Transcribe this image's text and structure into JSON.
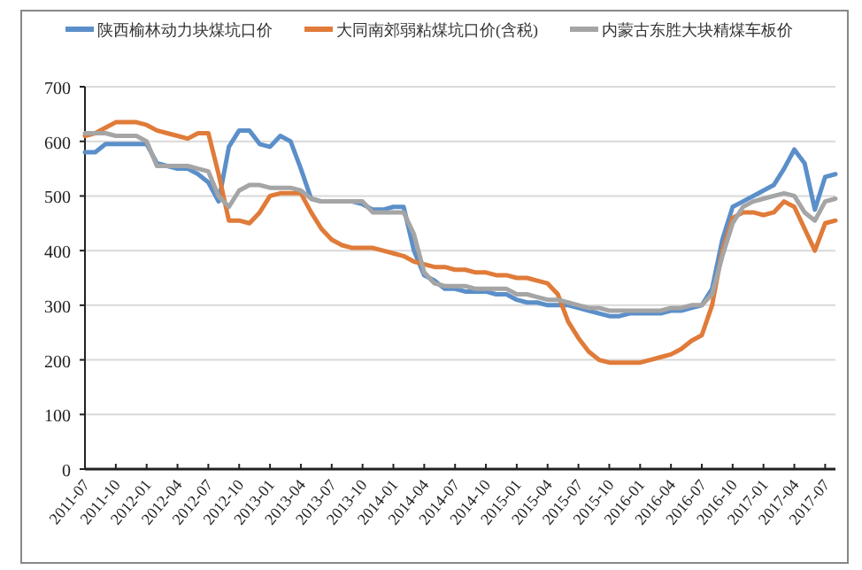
{
  "chart_data": {
    "type": "line",
    "x": [
      "2011-07",
      "2011-08",
      "2011-09",
      "2011-10",
      "2011-11",
      "2011-12",
      "2012-01",
      "2012-02",
      "2012-03",
      "2012-04",
      "2012-05",
      "2012-06",
      "2012-07",
      "2012-08",
      "2012-09",
      "2012-10",
      "2012-11",
      "2012-12",
      "2013-01",
      "2013-02",
      "2013-03",
      "2013-04",
      "2013-05",
      "2013-06",
      "2013-07",
      "2013-08",
      "2013-09",
      "2013-10",
      "2013-11",
      "2013-12",
      "2014-01",
      "2014-02",
      "2014-03",
      "2014-04",
      "2014-05",
      "2014-06",
      "2014-07",
      "2014-08",
      "2014-09",
      "2014-10",
      "2014-11",
      "2014-12",
      "2015-01",
      "2015-02",
      "2015-03",
      "2015-04",
      "2015-05",
      "2015-06",
      "2015-07",
      "2015-08",
      "2015-09",
      "2015-10",
      "2015-11",
      "2015-12",
      "2016-01",
      "2016-02",
      "2016-03",
      "2016-04",
      "2016-05",
      "2016-06",
      "2016-07",
      "2016-08",
      "2016-09",
      "2016-10",
      "2016-11",
      "2016-12",
      "2017-01",
      "2017-02",
      "2017-03",
      "2017-04",
      "2017-05",
      "2017-06",
      "2017-07",
      "2017-08"
    ],
    "series": [
      {
        "name": "陕西榆林动力块煤坑口价",
        "color": "#5b8fc9",
        "values": [
          580,
          580,
          595,
          595,
          595,
          595,
          595,
          560,
          555,
          550,
          550,
          540,
          525,
          490,
          590,
          620,
          620,
          595,
          590,
          610,
          600,
          550,
          495,
          490,
          490,
          490,
          490,
          485,
          475,
          475,
          480,
          480,
          400,
          355,
          345,
          330,
          330,
          325,
          325,
          325,
          320,
          320,
          310,
          305,
          305,
          300,
          300,
          300,
          295,
          290,
          285,
          280,
          280,
          285,
          285,
          285,
          285,
          290,
          290,
          295,
          300,
          330,
          420,
          480,
          490,
          500,
          510,
          520,
          550,
          585,
          560,
          475,
          535,
          540
        ]
      },
      {
        "name": "大同南郊弱粘煤坑口价(含税)",
        "color": "#e07b39",
        "values": [
          610,
          615,
          625,
          635,
          635,
          635,
          630,
          620,
          615,
          610,
          605,
          615,
          615,
          540,
          455,
          455,
          450,
          470,
          500,
          505,
          505,
          505,
          470,
          440,
          420,
          410,
          405,
          405,
          405,
          400,
          395,
          390,
          380,
          375,
          370,
          370,
          365,
          365,
          360,
          360,
          355,
          355,
          350,
          350,
          345,
          340,
          320,
          270,
          240,
          215,
          200,
          195,
          195,
          195,
          195,
          200,
          205,
          210,
          220,
          235,
          245,
          300,
          400,
          460,
          470,
          470,
          465,
          470,
          490,
          480,
          440,
          400,
          450,
          455
        ]
      },
      {
        "name": "内蒙古东胜大块精煤车板价",
        "color": "#a5a5a5",
        "values": [
          615,
          615,
          615,
          610,
          610,
          610,
          600,
          555,
          555,
          555,
          555,
          550,
          545,
          500,
          480,
          510,
          520,
          520,
          515,
          515,
          515,
          510,
          495,
          490,
          490,
          490,
          490,
          490,
          470,
          470,
          470,
          470,
          430,
          360,
          340,
          335,
          335,
          335,
          330,
          330,
          330,
          330,
          320,
          320,
          315,
          310,
          310,
          305,
          300,
          295,
          295,
          290,
          290,
          290,
          290,
          290,
          290,
          295,
          295,
          300,
          300,
          320,
          390,
          450,
          480,
          490,
          495,
          500,
          505,
          500,
          470,
          455,
          490,
          495
        ]
      }
    ],
    "xlim": [
      "2011-07",
      "2017-08"
    ],
    "xticks": [
      "2011-07",
      "2011-10",
      "2012-01",
      "2012-04",
      "2012-07",
      "2012-10",
      "2013-01",
      "2013-04",
      "2013-07",
      "2013-10",
      "2014-01",
      "2014-04",
      "2014-07",
      "2014-10",
      "2015-01",
      "2015-04",
      "2015-07",
      "2015-10",
      "2016-01",
      "2016-04",
      "2016-07",
      "2016-10",
      "2017-01",
      "2017-04",
      "2017-07"
    ],
    "ylim": [
      0,
      700
    ],
    "yticks": [
      0,
      100,
      200,
      300,
      400,
      500,
      600,
      700
    ],
    "grid": "y",
    "legend": "top",
    "marker": "none",
    "line_style": "solid"
  }
}
